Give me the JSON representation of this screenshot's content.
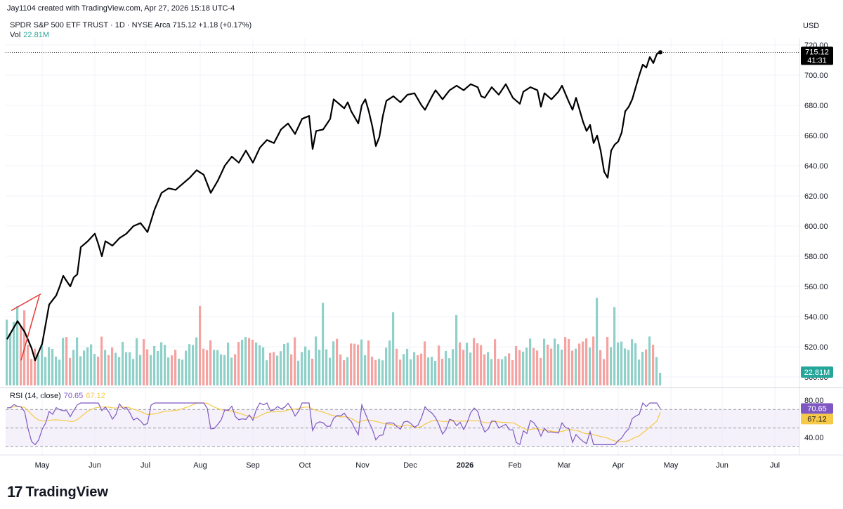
{
  "header": {
    "attribution": "Jay1104 created with TradingView.com, Apr 27, 2026 15:18 UTC-4"
  },
  "symbol": {
    "name": "SPDR S&P 500 ETF TRUST",
    "interval": "1D",
    "exchange": "NYSE Arca",
    "price": "715.12",
    "change": "+1.18",
    "change_pct": "(+0.17%)",
    "line": "SPDR S&P 500 ETF TRUST · 1D · NYSE Arca  715.12  +1.18 (+0.17%)"
  },
  "volume": {
    "label": "Vol",
    "value": "22.81M"
  },
  "currency": "USD",
  "price_badge": {
    "price": "715.12",
    "countdown": "41:31"
  },
  "rsi": {
    "label": "RSI (14, close)",
    "value": "70.65",
    "ma_value": "67.12"
  },
  "footer": {
    "logo": "17",
    "brand": "TradingView"
  },
  "colors": {
    "line": "#000000",
    "up": "#26a69a",
    "down": "#ef5350",
    "rsi": "#7e57c2",
    "rsi_ma": "#f7c948",
    "trend": "#e53935"
  },
  "chart_data": [
    {
      "type": "line",
      "title": "SPDR S&P 500 ETF TRUST · 1D · NYSE Arca",
      "ylabel": "USD",
      "ylim": [
        500,
        725
      ],
      "y_ticks": [
        "720.00",
        "700.00",
        "680.00",
        "660.00",
        "640.00",
        "620.00",
        "600.00",
        "580.00",
        "560.00",
        "540.00",
        "520.00",
        "500.00"
      ],
      "x_ticks": [
        "May",
        "Jun",
        "Jul",
        "Aug",
        "Sep",
        "Oct",
        "Nov",
        "Dec",
        "2026",
        "Feb",
        "Mar",
        "Apr",
        "May",
        "Jun",
        "Jul"
      ],
      "series": [
        {
          "name": "Close",
          "keypoints": [
            [
              0,
              525
            ],
            [
              3,
              537
            ],
            [
              5,
              530
            ],
            [
              7,
              519
            ],
            [
              8,
              511
            ],
            [
              10,
              522
            ],
            [
              12,
              548
            ],
            [
              14,
              554
            ],
            [
              15,
              560
            ],
            [
              16,
              567
            ],
            [
              18,
              560
            ],
            [
              19,
              566
            ],
            [
              20,
              568
            ],
            [
              21,
              586
            ],
            [
              23,
              590
            ],
            [
              25,
              595
            ],
            [
              26,
              588
            ],
            [
              27,
              580
            ],
            [
              28,
              590
            ],
            [
              30,
              587
            ],
            [
              32,
              592
            ],
            [
              34,
              595
            ],
            [
              36,
              600
            ],
            [
              38,
              602
            ],
            [
              40,
              596
            ],
            [
              42,
              611
            ],
            [
              44,
              622
            ],
            [
              46,
              625
            ],
            [
              48,
              624
            ],
            [
              50,
              628
            ],
            [
              52,
              632
            ],
            [
              54,
              637
            ],
            [
              56,
              634
            ],
            [
              57,
              628
            ],
            [
              58,
              622
            ],
            [
              60,
              630
            ],
            [
              62,
              640
            ],
            [
              64,
              646
            ],
            [
              66,
              642
            ],
            [
              68,
              650
            ],
            [
              70,
              642
            ],
            [
              72,
              652
            ],
            [
              74,
              657
            ],
            [
              76,
              655
            ],
            [
              78,
              664
            ],
            [
              80,
              668
            ],
            [
              82,
              661
            ],
            [
              84,
              671
            ],
            [
              86,
              673
            ],
            [
              87,
              651
            ],
            [
              88,
              663
            ],
            [
              90,
              664
            ],
            [
              92,
              671
            ],
            [
              93,
              684
            ],
            [
              94,
              682
            ],
            [
              96,
              678
            ],
            [
              97,
              682
            ],
            [
              98,
              676
            ],
            [
              100,
              668
            ],
            [
              101,
              680
            ],
            [
              102,
              684
            ],
            [
              103,
              676
            ],
            [
              104,
              666
            ],
            [
              105,
              653
            ],
            [
              106,
              659
            ],
            [
              107,
              673
            ],
            [
              108,
              683
            ],
            [
              110,
              686
            ],
            [
              112,
              682
            ],
            [
              114,
              687
            ],
            [
              116,
              688
            ],
            [
              118,
              680
            ],
            [
              119,
              677
            ],
            [
              121,
              686
            ],
            [
              122,
              690
            ],
            [
              124,
              684
            ],
            [
              126,
              690
            ],
            [
              128,
              693
            ],
            [
              130,
              690
            ],
            [
              132,
              694
            ],
            [
              134,
              692
            ],
            [
              135,
              686
            ],
            [
              136,
              685
            ],
            [
              138,
              692
            ],
            [
              140,
              687
            ],
            [
              142,
              694
            ],
            [
              144,
              685
            ],
            [
              146,
              681
            ],
            [
              147,
              689
            ],
            [
              149,
              692
            ],
            [
              151,
              690
            ],
            [
              152,
              679
            ],
            [
              153,
              688
            ],
            [
              155,
              684
            ],
            [
              157,
              689
            ],
            [
              158,
              693
            ],
            [
              160,
              682
            ],
            [
              161,
              677
            ],
            [
              162,
              685
            ],
            [
              164,
              669
            ],
            [
              165,
              663
            ],
            [
              166,
              667
            ],
            [
              167,
              655
            ],
            [
              168,
              660
            ],
            [
              169,
              650
            ],
            [
              170,
              636
            ],
            [
              171,
              632
            ],
            [
              172,
              650
            ],
            [
              173,
              654
            ],
            [
              174,
              656
            ],
            [
              175,
              662
            ],
            [
              176,
              676
            ],
            [
              177,
              679
            ],
            [
              178,
              684
            ],
            [
              179,
              692
            ],
            [
              180,
              700
            ],
            [
              181,
              707
            ],
            [
              182,
              705
            ],
            [
              183,
              712
            ],
            [
              184,
              708
            ],
            [
              185,
              714
            ],
            [
              186,
              715.12
            ]
          ]
        },
        {
          "name": "Volume",
          "last": "22.81M"
        },
        {
          "name": "RSI (14, close)",
          "range": [
            30,
            80
          ],
          "ticks": [
            "80.00",
            "40.00"
          ],
          "bands": [
            70,
            50,
            30
          ],
          "last": 70.65,
          "ma_last": 67.12
        }
      ],
      "annotations": [
        "Red trend line",
        "Last price 715.12"
      ]
    }
  ]
}
